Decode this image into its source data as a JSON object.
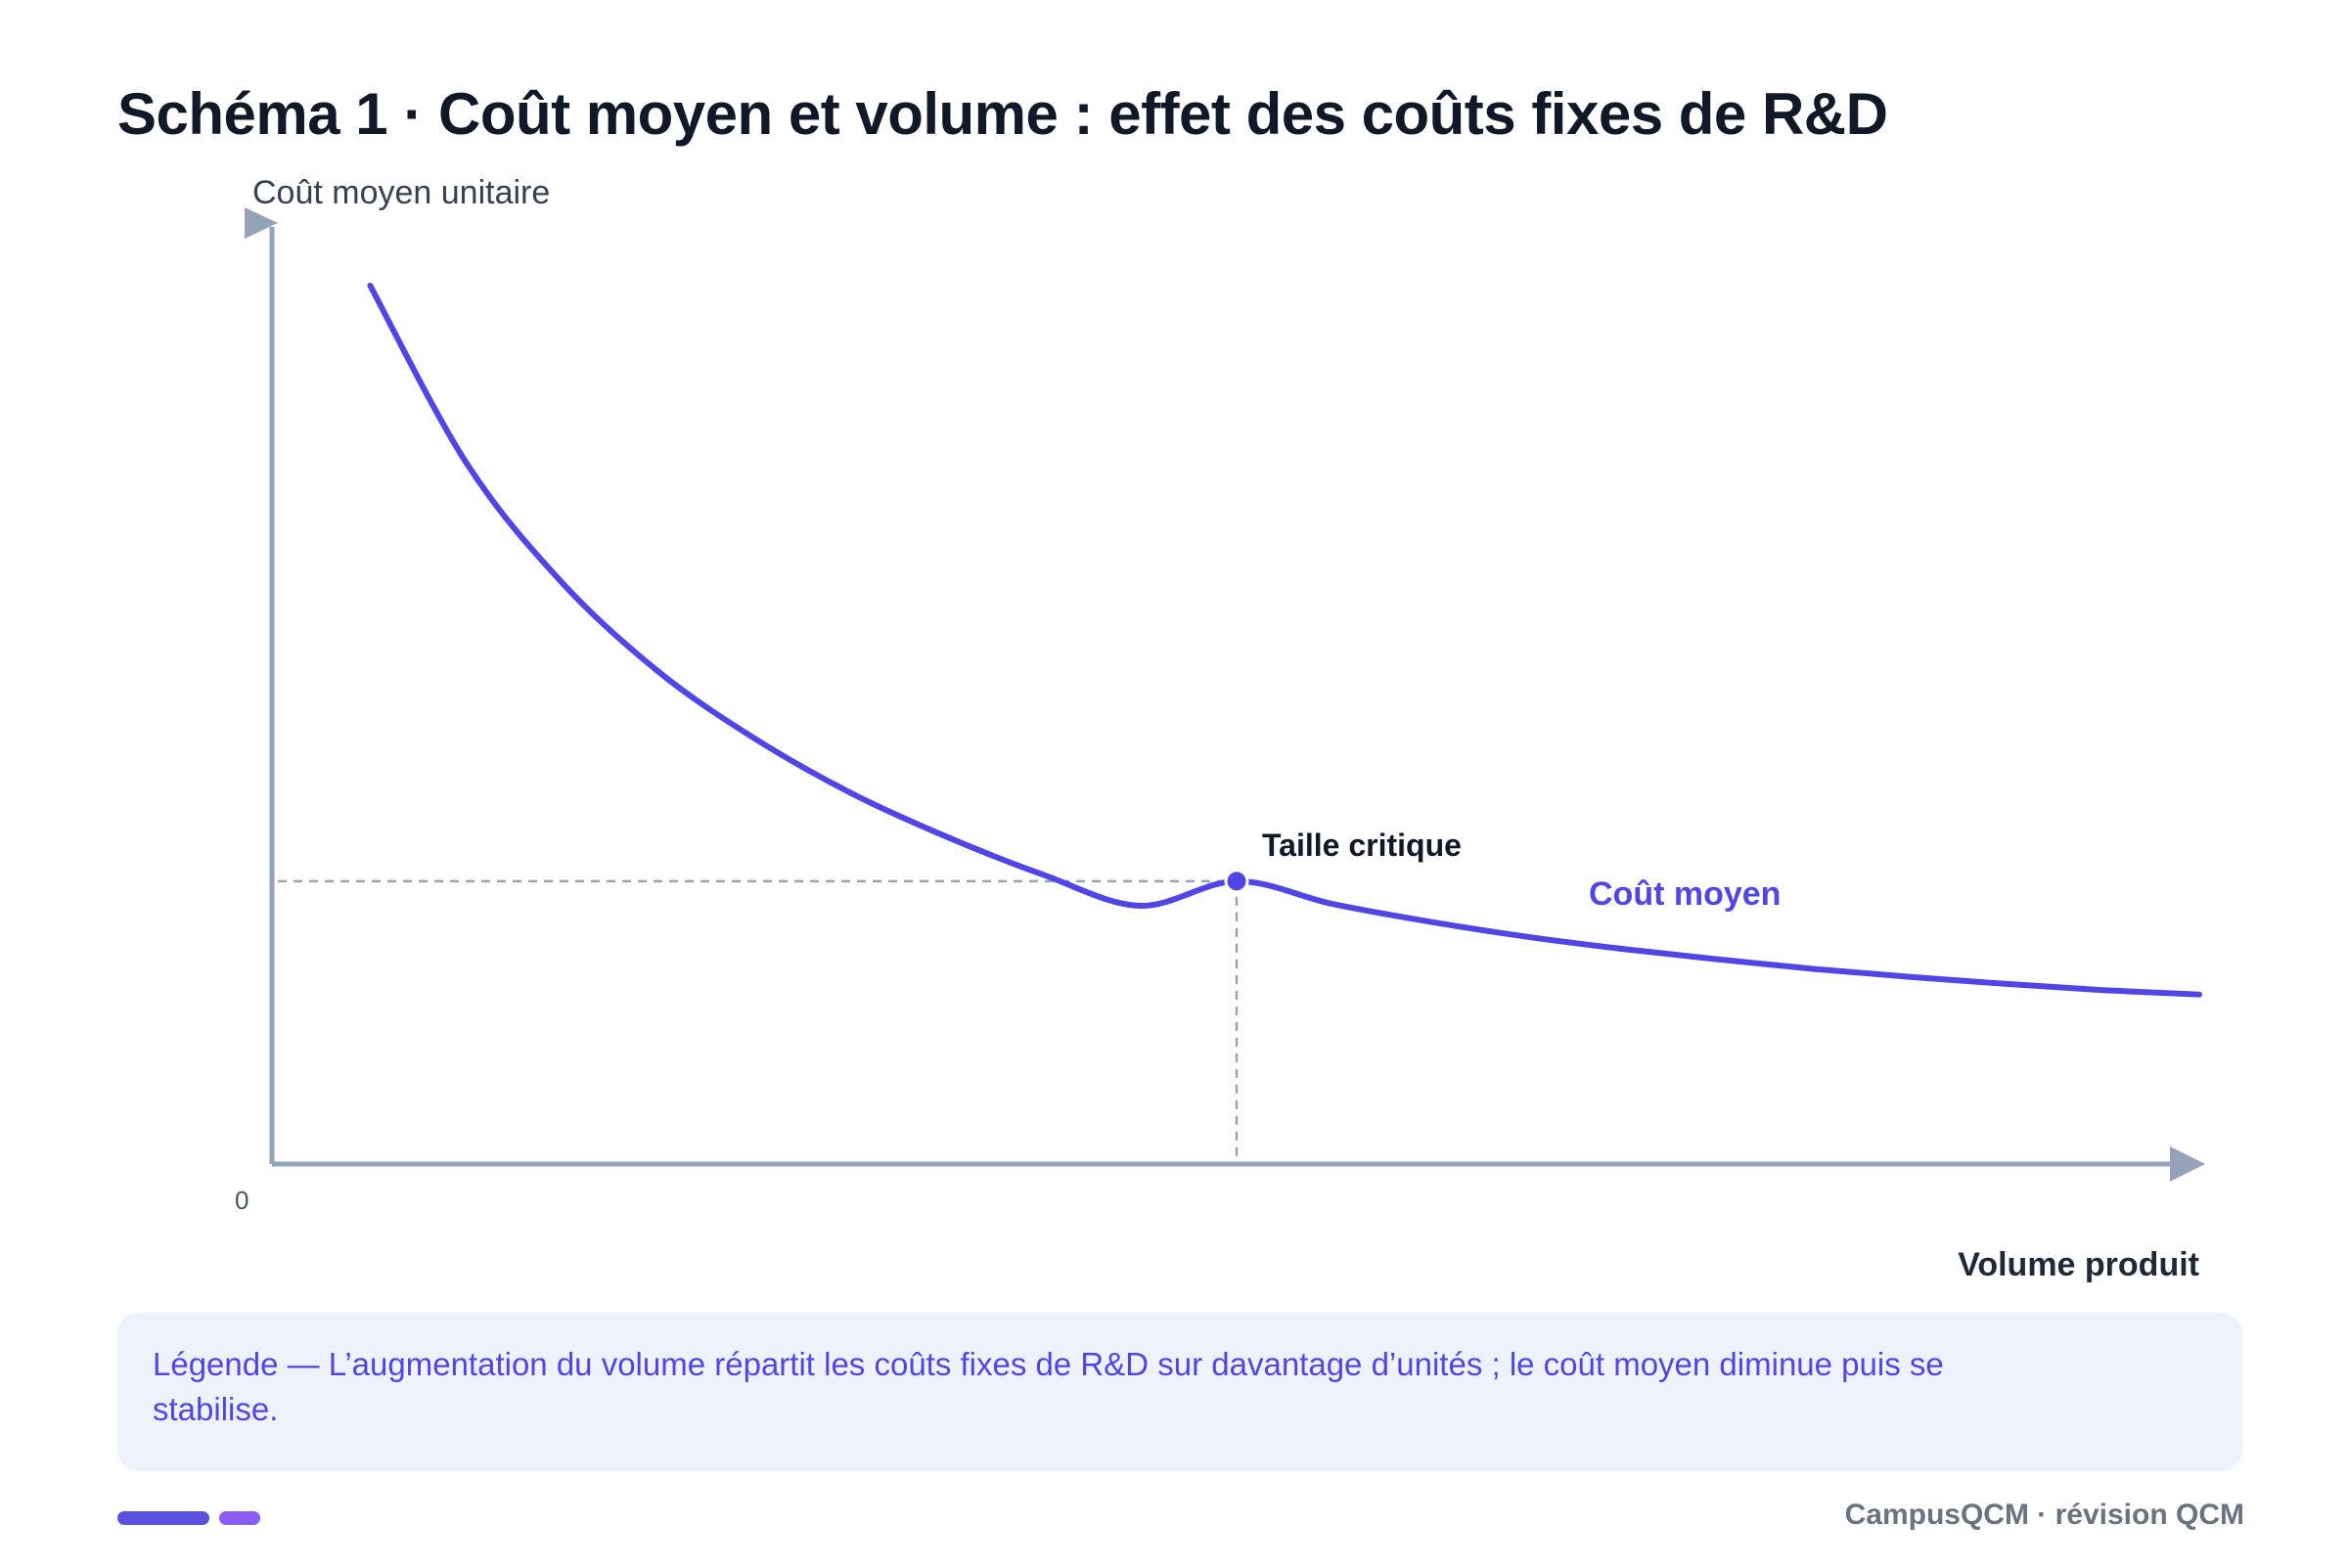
{
  "header": {
    "title": "Schéma 1 · Coût moyen et volume : effet des coûts fixes de R&D"
  },
  "chart_data": {
    "type": "line",
    "ylabel": "Coût moyen unitaire",
    "xlabel": "Volume produit",
    "origin_label": "0",
    "xlim": [
      0,
      100
    ],
    "ylim": [
      0,
      100
    ],
    "x_ticks_shown": false,
    "y_ticks_shown": false,
    "grid": false,
    "series": [
      {
        "name": "Coût moyen",
        "color": "#4f46e5",
        "x": [
          5,
          10,
          15,
          20,
          25,
          30,
          35,
          40,
          45,
          50,
          55,
          60,
          65,
          70,
          75,
          80,
          85,
          90,
          95,
          100
        ],
        "y": [
          100,
          79.8,
          66.1,
          56,
          48.4,
          42.2,
          37.2,
          32.9,
          29.4,
          32.2,
          29.6,
          27.6,
          25.9,
          24.5,
          23.3,
          22.2,
          21.3,
          20.5,
          19.8,
          19.3
        ]
      }
    ],
    "highlight_point": {
      "label": "Taille critique",
      "x": 50,
      "y": 32.2,
      "guides": "dashed"
    }
  },
  "legend": {
    "text": "Légende — L’augmentation du volume répartit les coûts fixes de R&D sur davantage d’unités ; le coût moyen diminue puis se stabilise."
  },
  "footer": {
    "brand": "CampusQCM · révision QCM",
    "bar_colors": [
      "#5b51e0",
      "#8b5cf6"
    ]
  },
  "colors": {
    "axis": "#94a3b8",
    "guide": "#9ca3af",
    "accent": "#4f46e5",
    "title": "#111827"
  }
}
